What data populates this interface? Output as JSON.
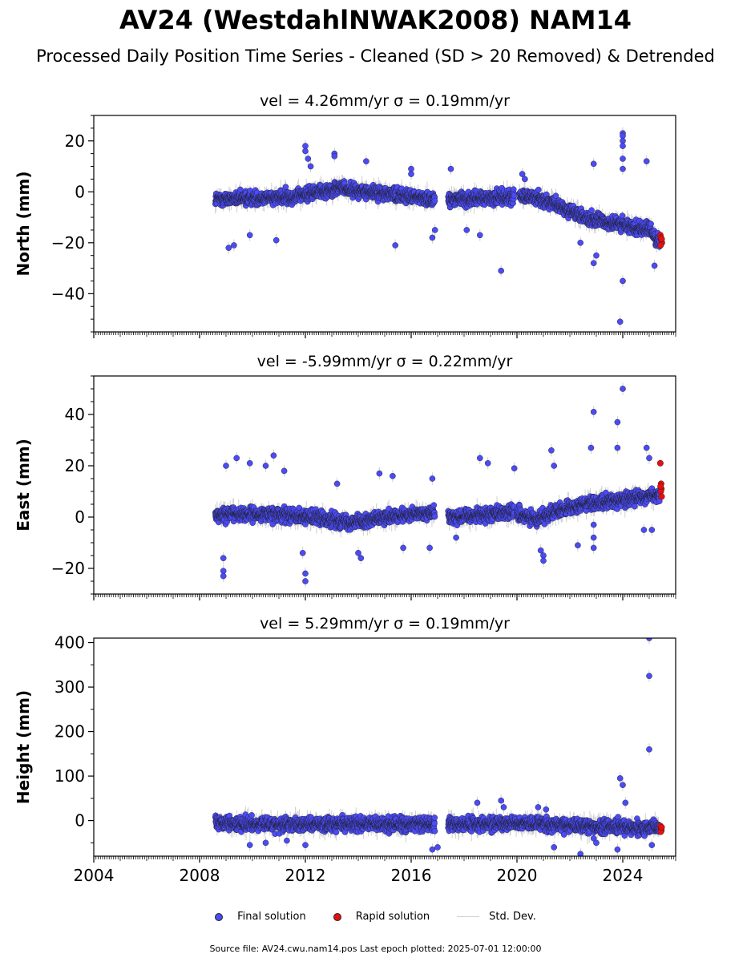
{
  "figure": {
    "title": "AV24 (WestdahlNWAK2008) NAM14",
    "subtitle": "Processed Daily Position Time Series - Cleaned (SD > 20 Removed) & Detrended",
    "footer": "Source file: AV24.cwu.nam14.pos  Last epoch plotted: 2025-07-01 12:00:00"
  },
  "legend": {
    "final_label": "Final solution",
    "rapid_label": "Rapid solution",
    "std_label": "Std. Dev.",
    "position": "bottom-center"
  },
  "colors": {
    "final": "#4b4bf5",
    "rapid": "#e31010",
    "std": "#cfcfcf",
    "edge": "#1a1a1a"
  },
  "chart_data": [
    {
      "type": "scatter",
      "title": "vel = 4.26mm/yr   σ = 0.19mm/yr",
      "ylabel": "North (mm)",
      "xlim": [
        2004,
        2026
      ],
      "ylim": [
        -55,
        30
      ],
      "yticks": [
        20,
        0,
        -20,
        -40
      ],
      "yminor_step": 5,
      "series": [
        {
          "name": "Final solution",
          "segments": [
            {
              "x0": 2008.6,
              "x1": 2011.5,
              "y0": -3,
              "y1": -2
            },
            {
              "x0": 2011.5,
              "x1": 2013.5,
              "y0": -2,
              "y1": 2
            },
            {
              "x0": 2013.5,
              "x1": 2016.9,
              "y0": 1,
              "y1": -3
            },
            {
              "x0": 2017.4,
              "x1": 2019.9,
              "y0": -3,
              "y1": -2
            },
            {
              "x0": 2020.1,
              "x1": 2021.0,
              "y0": -1,
              "y1": -3
            },
            {
              "x0": 2021.0,
              "x1": 2023.0,
              "y0": -3,
              "y1": -12
            },
            {
              "x0": 2023.0,
              "x1": 2025.0,
              "y0": -11,
              "y1": -15
            },
            {
              "x0": 2025.0,
              "x1": 2025.4,
              "y0": -15,
              "y1": -20
            }
          ],
          "outliers": [
            [
              2009.1,
              -22
            ],
            [
              2009.3,
              -21
            ],
            [
              2009.9,
              -17
            ],
            [
              2010.9,
              -19
            ],
            [
              2012.0,
              18
            ],
            [
              2012.0,
              16
            ],
            [
              2012.1,
              13
            ],
            [
              2012.2,
              10
            ],
            [
              2013.1,
              15
            ],
            [
              2013.1,
              14
            ],
            [
              2014.3,
              12
            ],
            [
              2015.4,
              -21
            ],
            [
              2016.0,
              9
            ],
            [
              2016.0,
              7
            ],
            [
              2016.8,
              -18
            ],
            [
              2016.9,
              -15
            ],
            [
              2017.5,
              9
            ],
            [
              2018.1,
              -15
            ],
            [
              2018.6,
              -17
            ],
            [
              2019.4,
              -31
            ],
            [
              2020.2,
              7
            ],
            [
              2020.3,
              5
            ],
            [
              2022.4,
              -20
            ],
            [
              2022.9,
              11
            ],
            [
              2022.9,
              -28
            ],
            [
              2023.0,
              -25
            ],
            [
              2024.0,
              23
            ],
            [
              2024.0,
              22
            ],
            [
              2024.0,
              20
            ],
            [
              2024.0,
              18
            ],
            [
              2024.0,
              13
            ],
            [
              2024.0,
              9
            ],
            [
              2024.0,
              -35
            ],
            [
              2023.9,
              -51
            ],
            [
              2024.9,
              12
            ],
            [
              2025.2,
              -29
            ]
          ]
        },
        {
          "name": "Rapid solution",
          "points": [
            [
              2025.42,
              -17
            ],
            [
              2025.44,
              -18
            ],
            [
              2025.46,
              -19
            ],
            [
              2025.48,
              -20
            ],
            [
              2025.43,
              -21
            ],
            [
              2025.47,
              -18.5
            ]
          ]
        }
      ]
    },
    {
      "type": "scatter",
      "title": "vel = -5.99mm/yr   σ = 0.22mm/yr",
      "ylabel": "East (mm)",
      "xlim": [
        2004,
        2026
      ],
      "ylim": [
        -30,
        55
      ],
      "yticks": [
        40,
        20,
        0,
        -20
      ],
      "yminor_step": 5,
      "series": [
        {
          "name": "Final solution",
          "segments": [
            {
              "x0": 2008.6,
              "x1": 2011.5,
              "y0": 1,
              "y1": 1
            },
            {
              "x0": 2011.5,
              "x1": 2013.7,
              "y0": 1,
              "y1": -2
            },
            {
              "x0": 2013.7,
              "x1": 2016.9,
              "y0": -2,
              "y1": 2
            },
            {
              "x0": 2017.4,
              "x1": 2019.9,
              "y0": 0,
              "y1": 2
            },
            {
              "x0": 2020.0,
              "x1": 2020.8,
              "y0": 1,
              "y1": -1
            },
            {
              "x0": 2020.8,
              "x1": 2022.8,
              "y0": 0,
              "y1": 6
            },
            {
              "x0": 2022.8,
              "x1": 2025.4,
              "y0": 5,
              "y1": 9
            }
          ],
          "outliers": [
            [
              2008.9,
              -16
            ],
            [
              2008.9,
              -21
            ],
            [
              2008.9,
              -23
            ],
            [
              2009.0,
              20
            ],
            [
              2009.4,
              23
            ],
            [
              2009.9,
              21
            ],
            [
              2010.5,
              20
            ],
            [
              2010.8,
              24
            ],
            [
              2011.2,
              18
            ],
            [
              2011.9,
              -14
            ],
            [
              2012.0,
              -22
            ],
            [
              2012.0,
              -25
            ],
            [
              2013.2,
              13
            ],
            [
              2014.0,
              -14
            ],
            [
              2014.1,
              -16
            ],
            [
              2014.8,
              17
            ],
            [
              2015.3,
              16
            ],
            [
              2015.7,
              -12
            ],
            [
              2016.7,
              -12
            ],
            [
              2016.8,
              15
            ],
            [
              2017.7,
              -8
            ],
            [
              2018.6,
              23
            ],
            [
              2018.9,
              21
            ],
            [
              2019.9,
              19
            ],
            [
              2020.9,
              -13
            ],
            [
              2021.0,
              -15
            ],
            [
              2021.0,
              -17
            ],
            [
              2021.3,
              26
            ],
            [
              2021.4,
              20
            ],
            [
              2022.3,
              -11
            ],
            [
              2022.8,
              27
            ],
            [
              2022.9,
              41
            ],
            [
              2022.9,
              -3
            ],
            [
              2022.9,
              -8
            ],
            [
              2022.9,
              -12
            ],
            [
              2023.8,
              37
            ],
            [
              2023.8,
              27
            ],
            [
              2024.0,
              50
            ],
            [
              2024.9,
              27
            ],
            [
              2025.0,
              23
            ],
            [
              2024.8,
              -5
            ],
            [
              2025.1,
              -5
            ]
          ]
        },
        {
          "name": "Rapid solution",
          "points": [
            [
              2025.42,
              21
            ],
            [
              2025.45,
              13
            ],
            [
              2025.46,
              11
            ],
            [
              2025.44,
              10
            ],
            [
              2025.47,
              8
            ],
            [
              2025.43,
              12
            ]
          ]
        }
      ]
    },
    {
      "type": "scatter",
      "title": "vel = 5.29mm/yr   σ = 0.19mm/yr",
      "ylabel": "Height (mm)",
      "xlim": [
        2004,
        2026
      ],
      "ylim": [
        -80,
        410
      ],
      "yticks": [
        400,
        300,
        200,
        100,
        0
      ],
      "yminor_step": 50,
      "xticks": [
        2004,
        2008,
        2012,
        2016,
        2020,
        2024
      ],
      "series": [
        {
          "name": "Final solution",
          "segments": [
            {
              "x0": 2008.6,
              "x1": 2016.9,
              "y0": -8,
              "y1": -8
            },
            {
              "x0": 2017.4,
              "x1": 2021.0,
              "y0": -8,
              "y1": -5
            },
            {
              "x0": 2021.0,
              "x1": 2025.4,
              "y0": -8,
              "y1": -18
            }
          ],
          "outliers": [
            [
              2009.9,
              -55
            ],
            [
              2010.5,
              -50
            ],
            [
              2011.3,
              -45
            ],
            [
              2012.0,
              -55
            ],
            [
              2016.8,
              -65
            ],
            [
              2017.0,
              -60
            ],
            [
              2018.5,
              40
            ],
            [
              2019.4,
              45
            ],
            [
              2019.5,
              30
            ],
            [
              2020.8,
              30
            ],
            [
              2021.1,
              25
            ],
            [
              2021.4,
              -60
            ],
            [
              2022.4,
              -75
            ],
            [
              2022.9,
              -40
            ],
            [
              2023.0,
              -50
            ],
            [
              2023.9,
              95
            ],
            [
              2024.0,
              80
            ],
            [
              2024.1,
              40
            ],
            [
              2023.8,
              -65
            ],
            [
              2025.0,
              410
            ],
            [
              2025.0,
              325
            ],
            [
              2025.0,
              160
            ],
            [
              2025.1,
              -55
            ]
          ]
        },
        {
          "name": "Rapid solution",
          "points": [
            [
              2025.42,
              -12
            ],
            [
              2025.45,
              -18
            ],
            [
              2025.46,
              -22
            ],
            [
              2025.44,
              -25
            ],
            [
              2025.47,
              -15
            ]
          ]
        }
      ]
    }
  ]
}
